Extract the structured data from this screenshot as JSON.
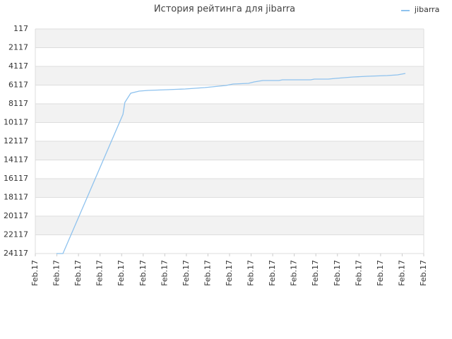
{
  "chart_data": {
    "type": "line",
    "title": "История рейтинга для jibarra",
    "xlim": [
      0,
      18
    ],
    "xticks": [
      {
        "value": 0,
        "label": "Feb.17"
      },
      {
        "value": 1,
        "label": "Feb.17"
      },
      {
        "value": 2,
        "label": "Feb.17"
      },
      {
        "value": 3,
        "label": "Feb.17"
      },
      {
        "value": 4,
        "label": "Feb.17"
      },
      {
        "value": 5,
        "label": "Feb.17"
      },
      {
        "value": 6,
        "label": "Feb.17"
      },
      {
        "value": 7,
        "label": "Feb.17"
      },
      {
        "value": 8,
        "label": "Feb.17"
      },
      {
        "value": 9,
        "label": "Feb.17"
      },
      {
        "value": 10,
        "label": "Feb.17"
      },
      {
        "value": 11,
        "label": "Feb.17"
      },
      {
        "value": 12,
        "label": "Feb.17"
      },
      {
        "value": 13,
        "label": "Feb.17"
      },
      {
        "value": 14,
        "label": "Feb.17"
      },
      {
        "value": 15,
        "label": "Feb.17"
      },
      {
        "value": 16,
        "label": "Feb.17"
      },
      {
        "value": 17,
        "label": "Feb.17"
      },
      {
        "value": 18,
        "label": "Feb.17"
      }
    ],
    "ylim": [
      24117,
      117
    ],
    "yticks": [
      117,
      2117,
      4117,
      6117,
      8117,
      10117,
      12117,
      14117,
      16117,
      18117,
      20117,
      22117,
      24117
    ],
    "legend": "top-right",
    "series": [
      {
        "name": "jibarra",
        "color": "#8ec2ee",
        "x": [
          0.98,
          1.28,
          4.06,
          4.15,
          4.42,
          4.81,
          5.24,
          6.12,
          6.94,
          7.85,
          8.84,
          9.16,
          9.88,
          10.14,
          10.54,
          11.29,
          11.45,
          12.76,
          12.93,
          13.58,
          13.91,
          14.73,
          15.38,
          16.3,
          16.79,
          17.15
        ],
        "values": [
          24117,
          24117,
          9250,
          7966,
          6985,
          6760,
          6683,
          6607,
          6532,
          6381,
          6155,
          6004,
          5928,
          5777,
          5626,
          5626,
          5550,
          5550,
          5475,
          5475,
          5400,
          5249,
          5173,
          5098,
          5022,
          4871
        ]
      }
    ]
  }
}
